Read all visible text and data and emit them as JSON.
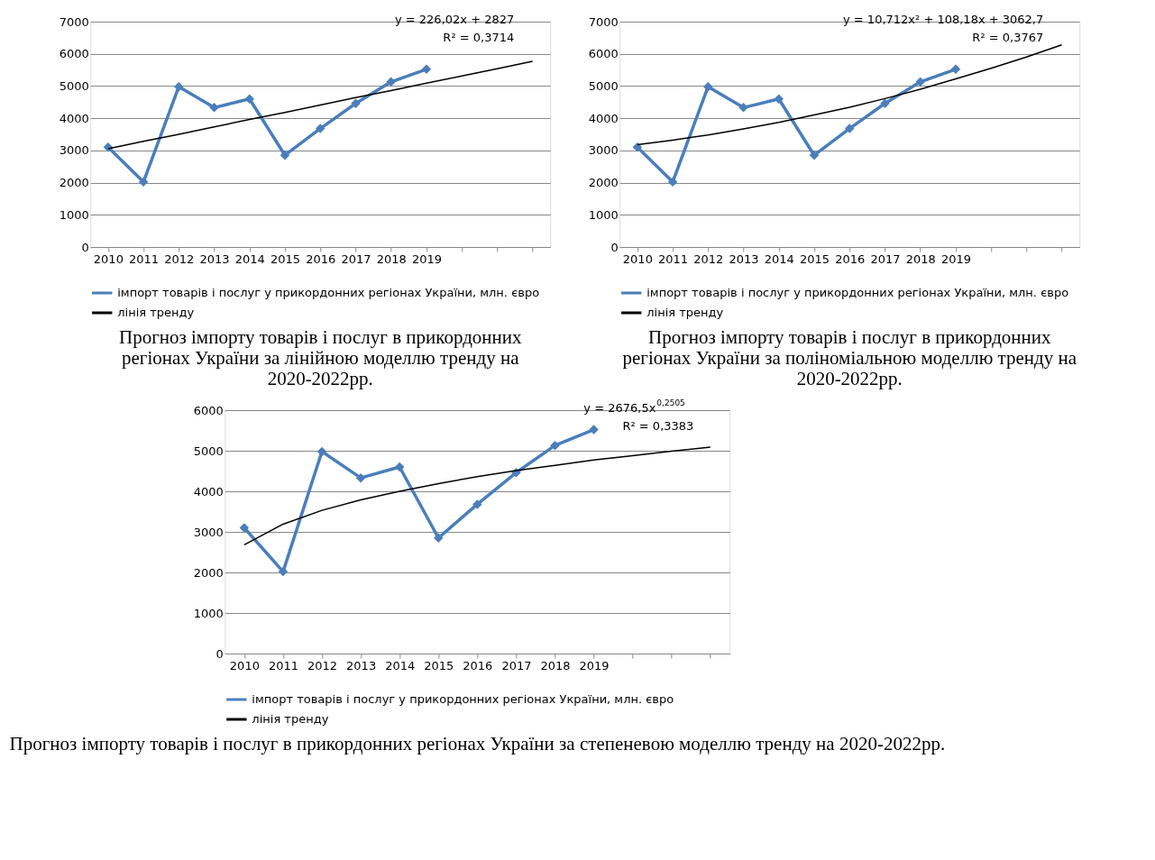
{
  "chart_data": [
    {
      "type": "line",
      "categories": [
        "2010",
        "2011",
        "2012",
        "2013",
        "2014",
        "2015",
        "2016",
        "2017",
        "2018",
        "2019",
        null,
        null,
        null
      ],
      "ylim": [
        0,
        7000
      ],
      "yticks": [
        0,
        1000,
        2000,
        3000,
        4000,
        5000,
        6000,
        7000
      ],
      "grid": "y",
      "legend": "bottom",
      "marker": "diamond",
      "series": [
        {
          "name": "імпорт товарів і послуг у прикордонних регіонах України, млн. євро",
          "color": "#4a7ebb",
          "values": [
            3100,
            2020,
            4980,
            4330,
            4600,
            2850,
            3680,
            4460,
            5130,
            5520,
            null,
            null,
            null
          ]
        },
        {
          "name": "лінія тренду",
          "color": "#000000",
          "marker": "none",
          "values": [
            3050,
            3280,
            3500,
            3730,
            3960,
            4180,
            4410,
            4640,
            4860,
            5090,
            5310,
            5540,
            5770
          ]
        }
      ],
      "annotations": [
        "y = 226,02x + 2827",
        "R² = 0,3714",
        "Прогноз імпорту товарів і послуг в прикордонних регіонах України за лінійною моделлю тренду на 2020-2022рр."
      ]
    },
    {
      "type": "line",
      "categories": [
        "2010",
        "2011",
        "2012",
        "2013",
        "2014",
        "2015",
        "2016",
        "2017",
        "2018",
        "2019",
        null,
        null,
        null
      ],
      "ylim": [
        0,
        7000
      ],
      "yticks": [
        0,
        1000,
        2000,
        3000,
        4000,
        5000,
        6000,
        7000
      ],
      "grid": "y",
      "legend": "bottom",
      "marker": "diamond",
      "series": [
        {
          "name": "імпорт товарів і послуг у прикордонних регіонах України, млн. євро",
          "color": "#4a7ebb",
          "values": [
            3100,
            2020,
            4980,
            4330,
            4600,
            2850,
            3680,
            4460,
            5130,
            5520,
            null,
            null,
            null
          ]
        },
        {
          "name": "лінія тренду",
          "color": "#000000",
          "marker": "none",
          "values": [
            3180,
            3320,
            3480,
            3670,
            3870,
            4100,
            4340,
            4610,
            4900,
            5220,
            5550,
            5900,
            6280
          ]
        }
      ],
      "annotations": [
        "y = 10,712x² + 108,18x + 3062,7",
        "R² = 0,3767",
        "Прогноз імпорту товарів і послуг в прикордонних регіонах України за поліноміальною моделлю тренду на 2020-2022рр."
      ]
    },
    {
      "type": "line",
      "categories": [
        "2010",
        "2011",
        "2012",
        "2013",
        "2014",
        "2015",
        "2016",
        "2017",
        "2018",
        "2019",
        null,
        null,
        null
      ],
      "ylim": [
        0,
        6000
      ],
      "yticks": [
        0,
        1000,
        2000,
        3000,
        4000,
        5000,
        6000
      ],
      "grid": "y",
      "legend": "bottom",
      "marker": "diamond",
      "series": [
        {
          "name": "імпорт товарів і послуг у прикордонних регіонах України, млн. євро",
          "color": "#4a7ebb",
          "values": [
            3100,
            2020,
            4980,
            4330,
            4600,
            2850,
            3680,
            4460,
            5130,
            5520,
            null,
            null,
            null
          ]
        },
        {
          "name": "лінія тренду",
          "color": "#000000",
          "marker": "none",
          "values": [
            2680,
            3190,
            3530,
            3790,
            4000,
            4190,
            4360,
            4510,
            4640,
            4770,
            4880,
            4990,
            5090
          ]
        }
      ],
      "annotations": [
        "y = 2676,5x$^{0,2505}$",
        "R² = 0,3383",
        "Прогноз імпорту товарів і послуг в прикордонних регіонах України за степеневою моделлю тренду на 2020-2022рр."
      ]
    }
  ]
}
